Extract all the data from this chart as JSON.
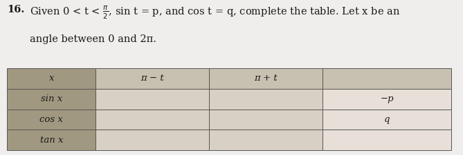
{
  "col_headers": [
    "x",
    "π − t",
    "π + t",
    ""
  ],
  "row_headers": [
    "sin x",
    "cos x",
    "tan x"
  ],
  "cell_values": [
    [
      "",
      "",
      "−p"
    ],
    [
      "",
      "",
      "q"
    ],
    [
      "",
      "",
      ""
    ]
  ],
  "header_bg_col0": "#a09880",
  "header_bg_other": "#c8c0b0",
  "row_label_bg": "#a09880",
  "cell_bg_light": "#d8d0c4",
  "cell_bg_lighter": "#e8e0d8",
  "cell_bg_last": "#d8d0c4",
  "border_color": "#555555",
  "text_color": "#1a1a1a",
  "background_color": "#f0eeec",
  "fig_width": 6.69,
  "fig_height": 2.25,
  "title_bold": "16.",
  "title_rest": "  Given 0 < t < π/2, sin t = p, and cos t = q, complete the table. Let x be an",
  "title_line2": "angle between 0 and 2π."
}
